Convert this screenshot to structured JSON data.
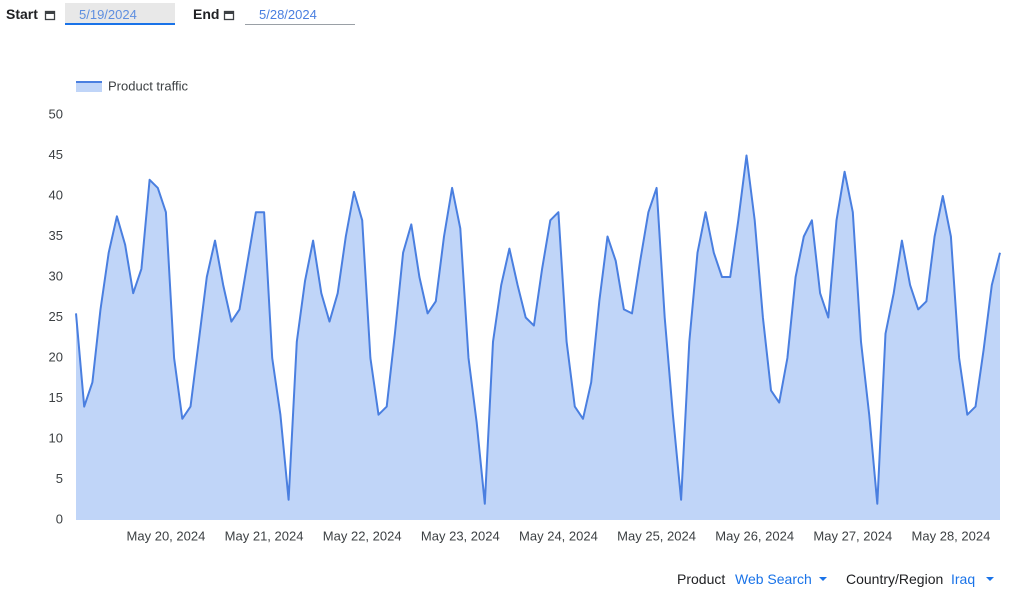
{
  "controls": {
    "start": {
      "label": "Start",
      "value": "5/19/2024"
    },
    "end": {
      "label": "End",
      "value": "5/28/2024"
    },
    "filters": [
      {
        "label": "Product",
        "value": "Web Search"
      },
      {
        "label": "Country/Region",
        "value": "Iraq"
      }
    ]
  },
  "chart_data": {
    "type": "area",
    "categories": [
      null,
      null,
      null,
      null,
      null,
      null,
      null,
      null,
      null,
      null,
      null,
      "May 20, 2024",
      null,
      null,
      null,
      null,
      null,
      null,
      null,
      null,
      null,
      null,
      null,
      "May 21, 2024",
      null,
      null,
      null,
      null,
      null,
      null,
      null,
      null,
      null,
      null,
      null,
      "May 22, 2024",
      null,
      null,
      null,
      null,
      null,
      null,
      null,
      null,
      null,
      null,
      null,
      "May 23, 2024",
      null,
      null,
      null,
      null,
      null,
      null,
      null,
      null,
      null,
      null,
      null,
      "May 24, 2024",
      null,
      null,
      null,
      null,
      null,
      null,
      null,
      null,
      null,
      null,
      null,
      "May 25, 2024",
      null,
      null,
      null,
      null,
      null,
      null,
      null,
      null,
      null,
      null,
      null,
      "May 26, 2024",
      null,
      null,
      null,
      null,
      null,
      null,
      null,
      null,
      null,
      null,
      null,
      "May 27, 2024",
      null,
      null,
      null,
      null,
      null,
      null,
      null,
      null,
      null,
      null,
      null,
      "May 28, 2024",
      null,
      null,
      null,
      null,
      null,
      null
    ],
    "series": [
      {
        "name": "Product traffic",
        "color": "#4a7fe0",
        "fill": "#c0d5f8",
        "values": [
          25.5,
          14,
          17,
          26,
          33,
          37.5,
          34,
          28,
          31,
          42,
          41,
          38,
          20,
          12.5,
          14,
          22,
          30,
          34.5,
          29,
          24.5,
          26,
          32,
          38,
          38,
          20,
          13,
          2.5,
          22,
          29.5,
          34.5,
          28,
          24.5,
          28,
          35,
          40.5,
          37,
          20,
          13,
          14,
          23,
          33,
          36.5,
          30,
          25.5,
          27,
          35,
          41,
          36,
          20,
          12,
          2,
          22,
          29,
          33.5,
          29,
          25,
          24,
          31,
          37,
          38,
          22,
          14,
          12.5,
          17,
          27,
          35,
          32,
          26,
          25.5,
          32,
          38,
          41,
          25,
          13,
          2.5,
          22,
          33,
          38,
          33,
          30,
          30,
          37,
          45,
          37,
          25,
          16,
          14.5,
          20,
          30,
          35,
          37,
          28,
          25,
          37,
          43,
          38,
          22,
          13,
          2,
          23,
          28,
          34.5,
          29,
          26,
          27,
          35,
          40,
          35,
          20,
          13,
          14,
          21,
          29,
          33
        ]
      }
    ],
    "ylim": [
      0,
      50
    ],
    "yticks": [
      0,
      5,
      10,
      15,
      20,
      25,
      30,
      35,
      40,
      45,
      50
    ],
    "legend": "top-left"
  }
}
